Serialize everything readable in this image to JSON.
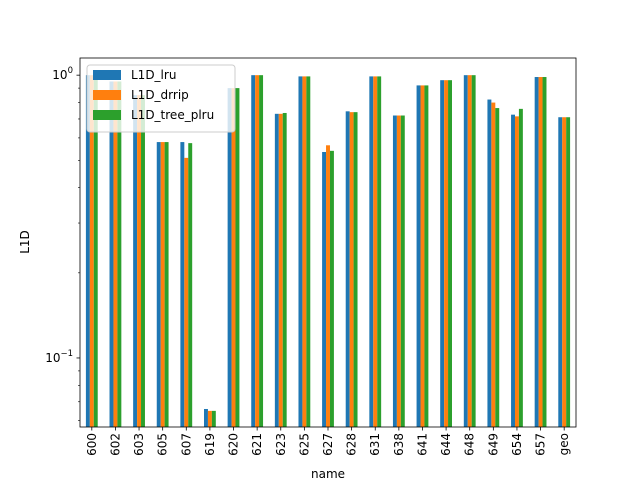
{
  "chart_data": {
    "type": "bar",
    "title": "",
    "xlabel": "name",
    "ylabel": "L1D",
    "yscale": "log",
    "ylim": [
      0.057,
      1.15
    ],
    "yticks": [
      {
        "value": 1.0,
        "label_base": "10",
        "label_exp": "0"
      },
      {
        "value": 0.1,
        "label_base": "10",
        "label_exp": "−1"
      }
    ],
    "legend_position": "upper-left",
    "grid": false,
    "categories": [
      "600",
      "602",
      "603",
      "605",
      "607",
      "619",
      "620",
      "621",
      "623",
      "625",
      "627",
      "628",
      "631",
      "638",
      "641",
      "644",
      "648",
      "649",
      "654",
      "657",
      "geo"
    ],
    "series": [
      {
        "name": "L1D_lru",
        "color": "#1f77b4",
        "values": [
          1.0,
          0.95,
          0.85,
          0.58,
          0.58,
          0.066,
          0.9,
          1.0,
          0.73,
          0.99,
          0.535,
          0.745,
          0.99,
          0.72,
          0.92,
          0.96,
          1.0,
          0.82,
          0.725,
          0.985,
          0.71
        ]
      },
      {
        "name": "L1D_drrip",
        "color": "#ff7f0e",
        "values": [
          1.0,
          0.95,
          0.85,
          0.58,
          0.51,
          0.065,
          0.9,
          1.0,
          0.73,
          0.99,
          0.565,
          0.74,
          0.99,
          0.72,
          0.92,
          0.96,
          1.0,
          0.8,
          0.715,
          0.985,
          0.71
        ]
      },
      {
        "name": "L1D_tree_plru",
        "color": "#2ca02c",
        "values": [
          1.0,
          0.95,
          0.85,
          0.58,
          0.575,
          0.065,
          0.9,
          1.0,
          0.735,
          0.99,
          0.54,
          0.74,
          0.99,
          0.72,
          0.92,
          0.96,
          1.0,
          0.765,
          0.76,
          0.985,
          0.71
        ]
      }
    ]
  }
}
